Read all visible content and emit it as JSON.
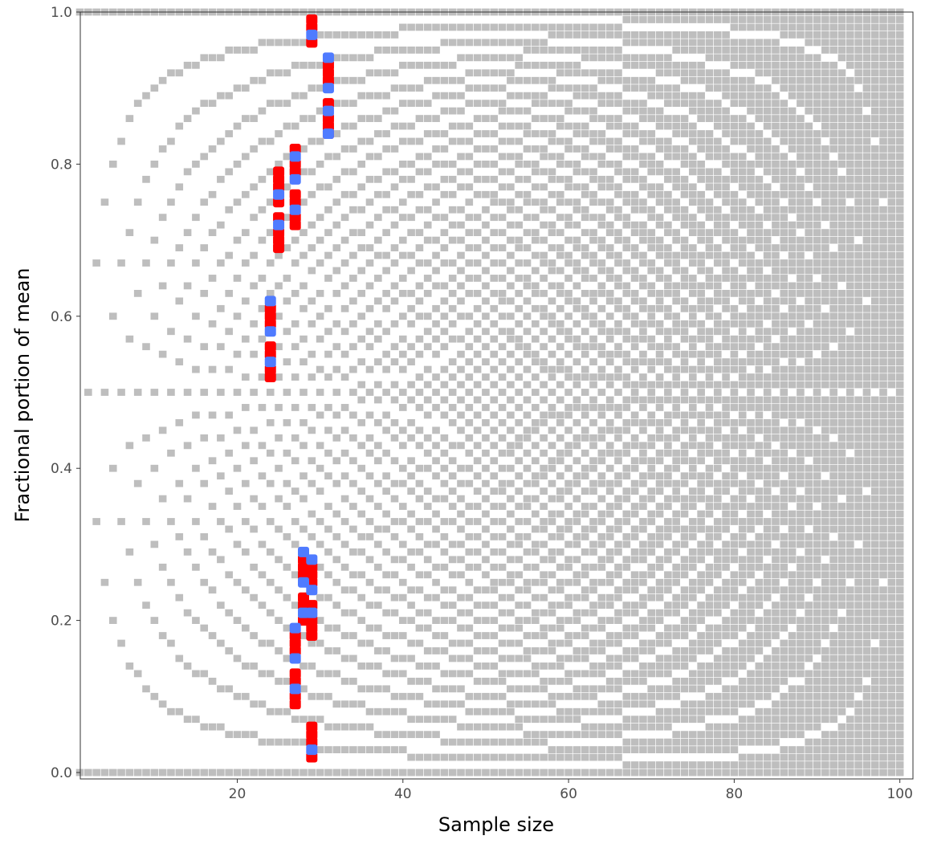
{
  "chart_data": {
    "type": "scatter",
    "title": "",
    "xlabel": "Sample size",
    "ylabel": "Fractional portion of mean",
    "xlim": [
      1,
      100
    ],
    "ylim": [
      0,
      1
    ],
    "xticks": [
      20,
      40,
      60,
      80,
      100
    ],
    "xtick_labels": [
      "20",
      "40",
      "60",
      "80",
      "100"
    ],
    "yticks": [
      0,
      0.2,
      0.4,
      0.6,
      0.8,
      1
    ],
    "ytick_labels": [
      "0.0",
      "0.2",
      "0.4",
      "0.6",
      "0.8",
      "1.0"
    ],
    "grid": false,
    "legend": "none",
    "background": {
      "description": "gray tiles at every attainable fractional mean k/n for sample size n = 1..100, on a 0.01 grid",
      "n_range": [
        1,
        100
      ],
      "grid_step": 0.01,
      "color": "#bebebe"
    },
    "series": [
      {
        "color": "#ff0000",
        "values": [
          [
            24,
            0.52
          ],
          [
            24,
            0.53
          ],
          [
            24,
            0.55
          ],
          [
            24,
            0.56
          ],
          [
            24,
            0.59
          ],
          [
            24,
            0.6
          ],
          [
            24,
            0.61
          ],
          [
            25,
            0.69
          ],
          [
            25,
            0.7
          ],
          [
            25,
            0.71
          ],
          [
            25,
            0.73
          ],
          [
            25,
            0.75
          ],
          [
            25,
            0.77
          ],
          [
            25,
            0.78
          ],
          [
            25,
            0.79
          ],
          [
            27,
            0.09
          ],
          [
            27,
            0.1
          ],
          [
            27,
            0.12
          ],
          [
            27,
            0.13
          ],
          [
            27,
            0.16
          ],
          [
            27,
            0.17
          ],
          [
            27,
            0.18
          ],
          [
            27,
            0.72
          ],
          [
            27,
            0.73
          ],
          [
            27,
            0.75
          ],
          [
            27,
            0.76
          ],
          [
            27,
            0.79
          ],
          [
            27,
            0.8
          ],
          [
            27,
            0.82
          ],
          [
            28,
            0.2
          ],
          [
            28,
            0.22
          ],
          [
            28,
            0.23
          ],
          [
            28,
            0.26
          ],
          [
            28,
            0.27
          ],
          [
            28,
            0.28
          ],
          [
            29,
            0.02
          ],
          [
            29,
            0.04
          ],
          [
            29,
            0.05
          ],
          [
            29,
            0.06
          ],
          [
            29,
            0.18
          ],
          [
            29,
            0.19
          ],
          [
            29,
            0.2
          ],
          [
            29,
            0.22
          ],
          [
            29,
            0.25
          ],
          [
            29,
            0.26
          ],
          [
            29,
            0.27
          ],
          [
            29,
            0.96
          ],
          [
            29,
            0.98
          ],
          [
            29,
            0.99
          ],
          [
            31,
            0.84
          ],
          [
            31,
            0.85
          ],
          [
            31,
            0.86
          ],
          [
            31,
            0.88
          ],
          [
            31,
            0.91
          ],
          [
            31,
            0.92
          ],
          [
            31,
            0.93
          ]
        ]
      },
      {
        "color": "#4f7bff",
        "values": [
          [
            24,
            0.54
          ],
          [
            24,
            0.58
          ],
          [
            24,
            0.62
          ],
          [
            25,
            0.72
          ],
          [
            25,
            0.76
          ],
          [
            27,
            0.11
          ],
          [
            27,
            0.15
          ],
          [
            27,
            0.19
          ],
          [
            27,
            0.74
          ],
          [
            27,
            0.78
          ],
          [
            27,
            0.81
          ],
          [
            28,
            0.21
          ],
          [
            28,
            0.25
          ],
          [
            28,
            0.29
          ],
          [
            29,
            0.03
          ],
          [
            29,
            0.21
          ],
          [
            29,
            0.24
          ],
          [
            29,
            0.28
          ],
          [
            29,
            0.97
          ],
          [
            31,
            0.84
          ],
          [
            31,
            0.87
          ],
          [
            31,
            0.9
          ],
          [
            31,
            0.94
          ]
        ]
      }
    ]
  }
}
